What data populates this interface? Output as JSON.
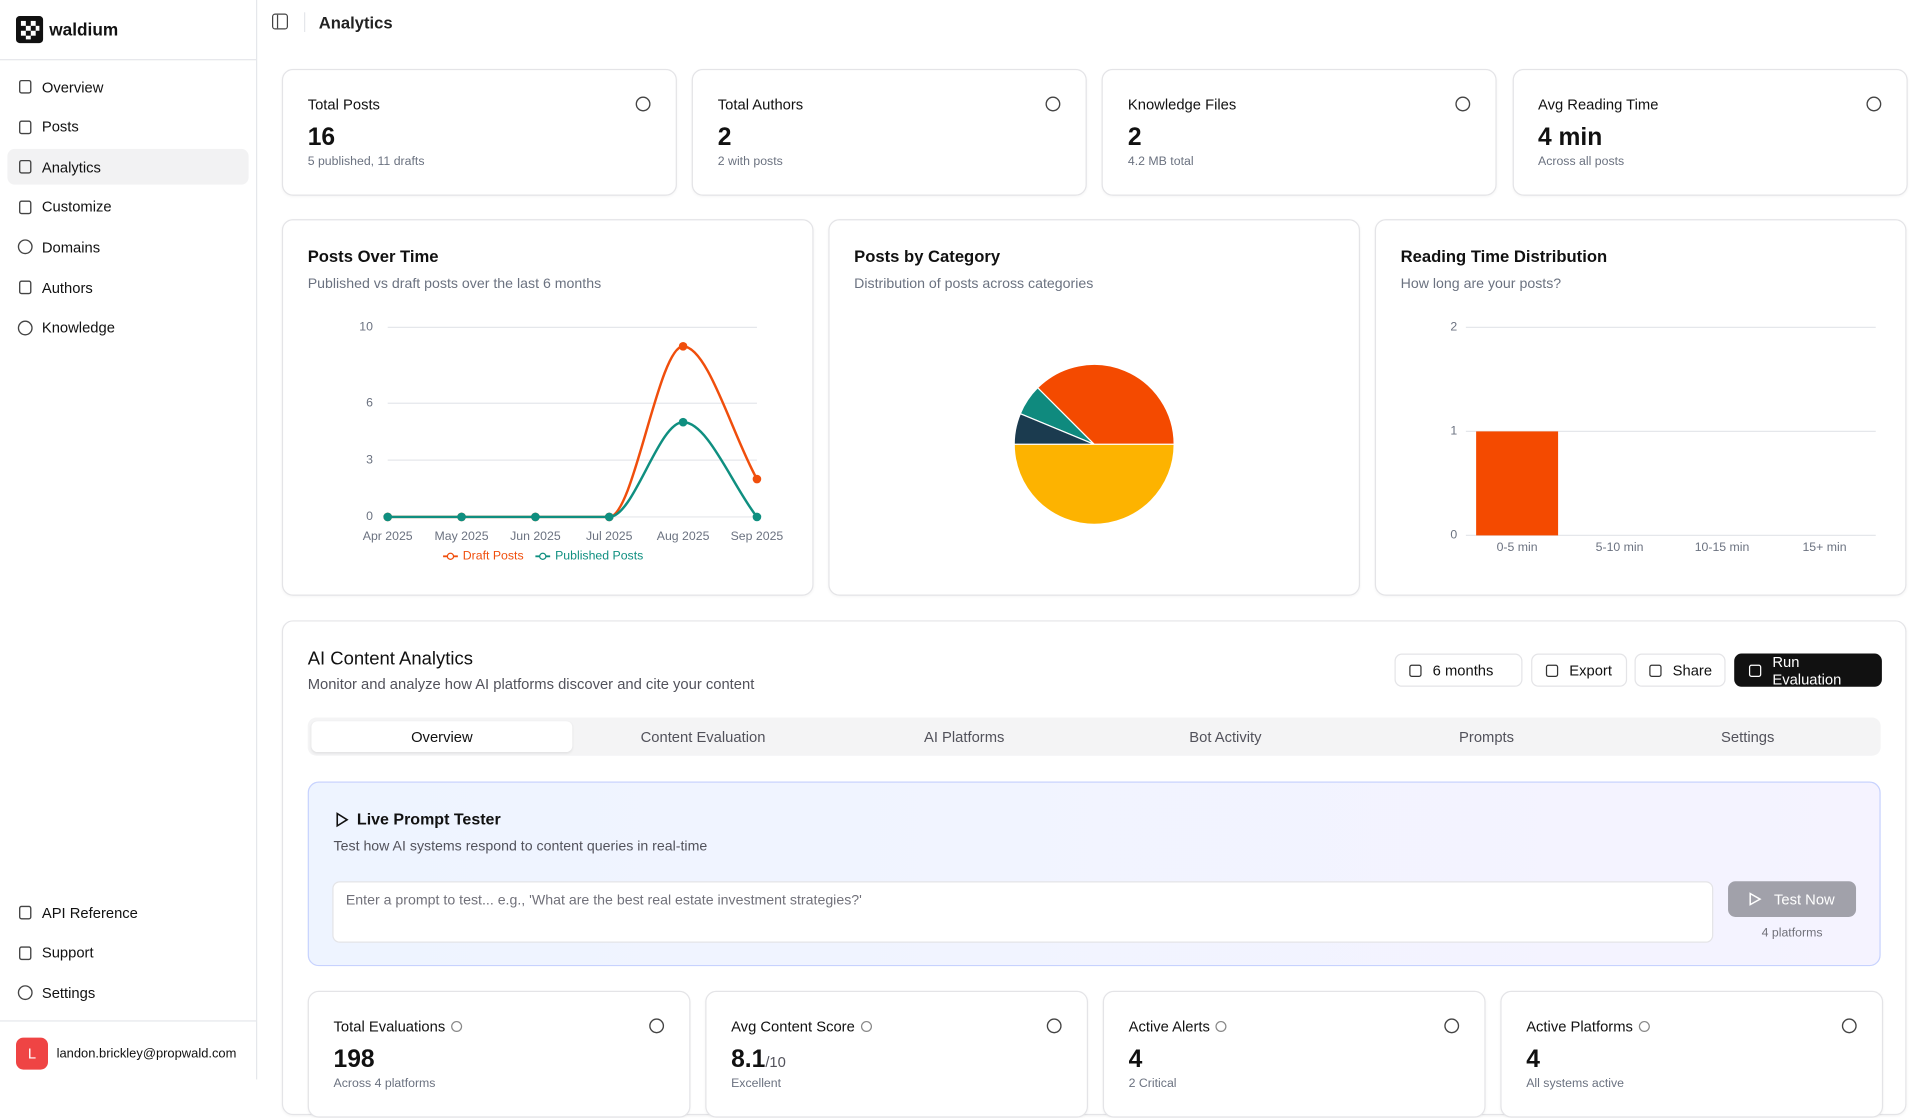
{
  "sidebar": {
    "brand": "waldium",
    "nav": [
      "Overview",
      "Posts",
      "Analytics",
      "Customize",
      "Domains",
      "Authors",
      "Knowledge"
    ],
    "footer_nav": [
      "API Reference",
      "Support",
      "Settings"
    ],
    "user": {
      "initial": "L",
      "email": "landon.brickley@propwald.com"
    }
  },
  "header": {
    "title": "Analytics"
  },
  "stats": [
    {
      "label": "Total Posts",
      "value": 16,
      "note": "5 published, 11 drafts"
    },
    {
      "label": "Total Authors",
      "value": 2,
      "note": "2 with posts"
    },
    {
      "label": "Knowledge Files",
      "value": 2,
      "note": "4.2 MB total"
    },
    {
      "label": "Avg Reading Time",
      "value": "4 min",
      "note": "Across all posts"
    }
  ],
  "chart_data": [
    {
      "type": "line",
      "title": "Posts Over Time",
      "subtitle": "Published vs draft posts over the last 6 months",
      "categories": [
        "Apr 2025",
        "May 2025",
        "Jun 2025",
        "Jul 2025",
        "Aug 2025",
        "Sep 2025"
      ],
      "series": [
        {
          "name": "Draft Posts",
          "color": "#f04e0c",
          "values": [
            0,
            0,
            0,
            0,
            9,
            2
          ]
        },
        {
          "name": "Published Posts",
          "color": "#0f8f80",
          "values": [
            0,
            0,
            0,
            0,
            5,
            0
          ]
        }
      ],
      "ylim": [
        0,
        10
      ],
      "yticks": [
        0,
        3,
        6,
        10
      ],
      "grid": true,
      "legend": "bottom"
    },
    {
      "type": "pie",
      "title": "Posts by Category",
      "subtitle": "Distribution of posts across categories",
      "values": [
        6,
        1,
        1,
        8
      ],
      "colors": [
        "#f44a00",
        "#0f8a7e",
        "#1b3b4f",
        "#fdb300"
      ]
    },
    {
      "type": "bar",
      "title": "Reading Time Distribution",
      "subtitle": "How long are your posts?",
      "categories": [
        "0-5 min",
        "5-10 min",
        "10-15 min",
        "15+ min"
      ],
      "values": [
        1,
        0,
        0,
        0
      ],
      "color": "#f44a00",
      "ylim": [
        0,
        2
      ],
      "yticks": [
        0,
        1,
        2
      ],
      "grid": true
    }
  ],
  "ai": {
    "title": "AI Content Analytics",
    "subtitle": "Monitor and analyze how AI platforms discover and cite your content",
    "buttons": [
      "6 months",
      "Export",
      "Share",
      "Run Evaluation"
    ],
    "tabs": [
      "Overview",
      "Content Evaluation",
      "AI Platforms",
      "Bot Activity",
      "Prompts",
      "Settings"
    ],
    "tester": {
      "title": "Live Prompt Tester",
      "subtitle": "Test how AI systems respond to content queries in real-time",
      "placeholder": "Enter a prompt to test... e.g., 'What are the best real estate investment strategies?'",
      "button": "Test Now",
      "note": "4 platforms"
    },
    "stats": [
      {
        "label": "Total Evaluations",
        "value": 198,
        "note": "Across 4 platforms"
      },
      {
        "label": "Avg Content Score",
        "value": 8.1,
        "suffix": "/10",
        "note": "Excellent"
      },
      {
        "label": "Active Alerts",
        "value": 4,
        "note": "2 Critical"
      },
      {
        "label": "Active Platforms",
        "value": 4,
        "note": "All systems active"
      }
    ]
  }
}
